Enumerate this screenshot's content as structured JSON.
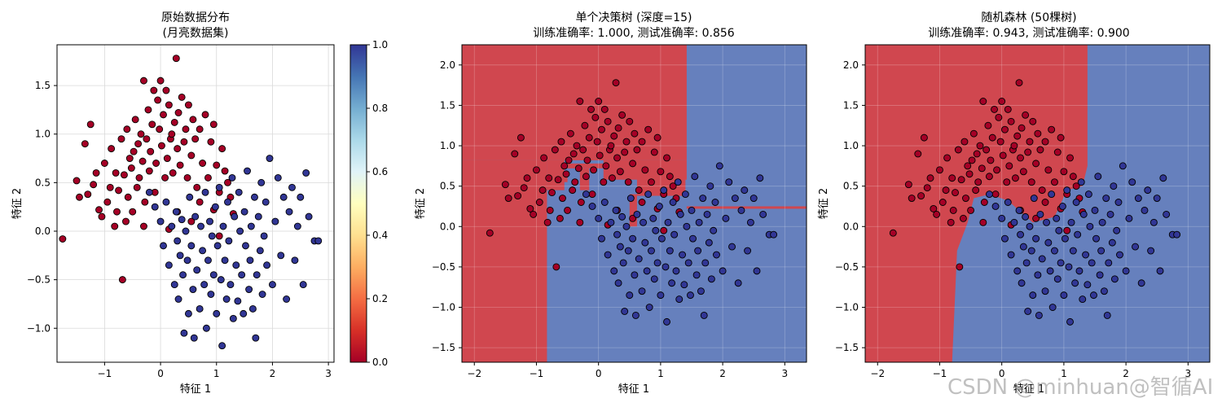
{
  "colors": {
    "red_region": "#d0474f",
    "blue_region": "#6680bd",
    "point_red": "#a50026",
    "point_blue": "#313695",
    "grid": "#d9d9d9"
  },
  "watermark": "CSDN @minhuan@智循AI",
  "chart_data": [
    {
      "type": "scatter",
      "title": "原始数据分布",
      "subtitle": "(月亮数据集)",
      "xlabel": "特征 1",
      "ylabel": "特征 2",
      "xlim": [
        -1.85,
        3.1
      ],
      "ylim": [
        -1.35,
        1.92
      ],
      "xticks": [
        -1,
        0,
        1,
        2,
        3
      ],
      "yticks": [
        -1.0,
        -0.5,
        0.0,
        0.5,
        1.0,
        1.5
      ],
      "grid": true,
      "colorbar": {
        "ticks": [
          "0.0",
          "0.2",
          "0.4",
          "0.6",
          "0.8",
          "1.0"
        ],
        "colormap": "RdYlBu"
      }
    },
    {
      "type": "scatter",
      "title": "单个决策树 (深度=15)",
      "subtitle": "训练准确率: 1.000, 测试准确率: 0.856",
      "xlabel": "特征 1",
      "ylabel": "特征 2",
      "xlim": [
        -2.2,
        3.35
      ],
      "ylim": [
        -1.68,
        2.25
      ],
      "xticks": [
        -2,
        -1,
        0,
        1,
        2,
        3
      ],
      "yticks": [
        -1.5,
        -1.0,
        -0.5,
        0.0,
        0.5,
        1.0,
        1.5,
        2.0
      ],
      "grid": true,
      "decision_regions": [
        {
          "class": 0,
          "x": [
            -2.2,
            1.42
          ],
          "y": [
            0.82,
            2.25
          ]
        },
        {
          "class": 0,
          "x": [
            1.42,
            3.35
          ],
          "y": [
            0.22,
            0.25
          ]
        },
        {
          "class": 0,
          "x": [
            -2.2,
            -0.83
          ],
          "y": [
            -1.68,
            0.82
          ]
        },
        {
          "class": 0,
          "x": [
            -0.83,
            -0.55
          ],
          "y": [
            0.45,
            0.82
          ]
        },
        {
          "class": 0,
          "x": [
            -0.55,
            0.08
          ],
          "y": [
            0.72,
            0.78
          ]
        },
        {
          "class": 0,
          "x": [
            -0.3,
            -0.15
          ],
          "y": [
            0.45,
            0.72
          ]
        },
        {
          "class": 0,
          "x": [
            0.08,
            1.42
          ],
          "y": [
            0.58,
            0.82
          ]
        },
        {
          "class": 0,
          "x": [
            0.5,
            0.62
          ],
          "y": [
            0.0,
            0.4
          ]
        },
        {
          "class": 0,
          "x": [
            0.62,
            1.4
          ],
          "y": [
            0.38,
            0.6
          ]
        },
        {
          "class": 0,
          "x": [
            -0.83,
            -0.5
          ],
          "y": [
            0.55,
            0.62
          ]
        }
      ]
    },
    {
      "type": "scatter",
      "title": "随机森林 (50棵树)",
      "subtitle": "训练准确率: 0.943, 测试准确率: 0.900",
      "xlabel": "特征 1",
      "ylabel": "特征 2",
      "xlim": [
        -2.2,
        3.35
      ],
      "ylim": [
        -1.68,
        2.25
      ],
      "xticks": [
        -2,
        -1,
        0,
        1,
        2,
        3
      ],
      "yticks": [
        -1.5,
        -1.0,
        -0.5,
        0.0,
        0.5,
        1.0,
        1.5,
        2.0
      ],
      "grid": true,
      "decision_boundary": [
        [
          1.38,
          2.25
        ],
        [
          1.38,
          0.75
        ],
        [
          1.3,
          0.5
        ],
        [
          1.05,
          0.45
        ],
        [
          0.85,
          0.12
        ],
        [
          0.5,
          0.05
        ],
        [
          0.1,
          0.32
        ],
        [
          -0.2,
          0.4
        ],
        [
          -0.45,
          0.35
        ],
        [
          -0.55,
          0.05
        ],
        [
          -0.72,
          -0.3
        ],
        [
          -0.8,
          -1.68
        ]
      ]
    }
  ],
  "points": {
    "class0": [
      [
        -1.75,
        -0.08
      ],
      [
        -1.5,
        0.52
      ],
      [
        -1.45,
        0.35
      ],
      [
        -1.35,
        0.9
      ],
      [
        -1.3,
        0.38
      ],
      [
        -1.25,
        1.1
      ],
      [
        -1.2,
        0.48
      ],
      [
        -1.15,
        0.6
      ],
      [
        -1.1,
        0.22
      ],
      [
        -1.05,
        0.15
      ],
      [
        -1.0,
        0.7
      ],
      [
        -0.95,
        0.3
      ],
      [
        -0.9,
        0.45
      ],
      [
        -0.88,
        0.85
      ],
      [
        -0.82,
        0.05
      ],
      [
        -0.8,
        0.6
      ],
      [
        -0.78,
        0.2
      ],
      [
        -0.75,
        0.42
      ],
      [
        -0.7,
        0.95
      ],
      [
        -0.68,
        -0.5
      ],
      [
        -0.65,
        0.58
      ],
      [
        -0.62,
        0.1
      ],
      [
        -0.6,
        1.05
      ],
      [
        -0.58,
        0.35
      ],
      [
        -0.55,
        0.75
      ],
      [
        -0.52,
        0.65
      ],
      [
        -0.5,
        0.2
      ],
      [
        -0.48,
        0.82
      ],
      [
        -0.45,
        1.15
      ],
      [
        -0.42,
        0.45
      ],
      [
        -0.4,
        0.9
      ],
      [
        -0.38,
        0.55
      ],
      [
        -0.35,
        1.0
      ],
      [
        -0.32,
        0.72
      ],
      [
        -0.3,
        1.55
      ],
      [
        -0.28,
        0.3
      ],
      [
        -0.25,
        0.95
      ],
      [
        -0.22,
        1.25
      ],
      [
        -0.2,
        0.62
      ],
      [
        -0.18,
        0.82
      ],
      [
        -0.15,
        1.1
      ],
      [
        -0.12,
        1.45
      ],
      [
        -0.1,
        0.4
      ],
      [
        -0.08,
        0.7
      ],
      [
        -0.05,
        1.35
      ],
      [
        -0.02,
        1.05
      ],
      [
        0.0,
        1.55
      ],
      [
        0.02,
        0.88
      ],
      [
        0.05,
        1.2
      ],
      [
        0.08,
        0.55
      ],
      [
        0.1,
        1.45
      ],
      [
        0.12,
        0.75
      ],
      [
        0.15,
        1.3
      ],
      [
        0.18,
        0.95
      ],
      [
        0.2,
        1.0
      ],
      [
        0.22,
        0.6
      ],
      [
        0.25,
        1.12
      ],
      [
        0.28,
        1.78
      ],
      [
        0.3,
        0.85
      ],
      [
        0.32,
        1.22
      ],
      [
        0.35,
        0.68
      ],
      [
        0.38,
        1.38
      ],
      [
        0.42,
        0.92
      ],
      [
        0.45,
        1.05
      ],
      [
        0.48,
        0.55
      ],
      [
        0.5,
        1.3
      ],
      [
        0.55,
        0.78
      ],
      [
        0.58,
        1.15
      ],
      [
        0.62,
        0.95
      ],
      [
        0.65,
        0.45
      ],
      [
        0.7,
        1.05
      ],
      [
        0.75,
        0.7
      ],
      [
        0.8,
        1.2
      ],
      [
        0.85,
        0.55
      ],
      [
        0.9,
        0.92
      ],
      [
        0.95,
        1.1
      ],
      [
        1.0,
        0.68
      ],
      [
        1.05,
        0.4
      ],
      [
        1.1,
        0.85
      ],
      [
        1.15,
        0.62
      ],
      [
        1.2,
        0.5
      ],
      [
        1.25,
        0.35
      ],
      [
        0.3,
        0.2
      ],
      [
        0.55,
        0.1
      ],
      [
        0.7,
        0.3
      ],
      [
        -0.3,
        0.05
      ],
      [
        0.15,
        0.02
      ],
      [
        1.3,
        0.18
      ],
      [
        1.05,
        -0.05
      ],
      [
        0.95,
        0.22
      ]
    ],
    "class1": [
      [
        -0.2,
        0.4
      ],
      [
        -0.1,
        0.25
      ],
      [
        0.0,
        0.1
      ],
      [
        0.05,
        -0.15
      ],
      [
        0.1,
        0.3
      ],
      [
        0.15,
        -0.35
      ],
      [
        0.2,
        0.05
      ],
      [
        0.25,
        -0.55
      ],
      [
        0.28,
        0.2
      ],
      [
        0.3,
        -0.1
      ],
      [
        0.32,
        -0.7
      ],
      [
        0.35,
        -0.25
      ],
      [
        0.38,
        0.12
      ],
      [
        0.4,
        -0.45
      ],
      [
        0.42,
        -1.05
      ],
      [
        0.45,
        0.0
      ],
      [
        0.48,
        -0.3
      ],
      [
        0.5,
        -0.85
      ],
      [
        0.52,
        0.35
      ],
      [
        0.55,
        -0.15
      ],
      [
        0.58,
        -0.6
      ],
      [
        0.6,
        -1.1
      ],
      [
        0.62,
        0.15
      ],
      [
        0.65,
        -0.4
      ],
      [
        0.7,
        -0.8
      ],
      [
        0.72,
        0.05
      ],
      [
        0.75,
        -0.2
      ],
      [
        0.78,
        -0.55
      ],
      [
        0.8,
        0.4
      ],
      [
        0.82,
        -1.0
      ],
      [
        0.85,
        -0.3
      ],
      [
        0.88,
        0.1
      ],
      [
        0.9,
        -0.65
      ],
      [
        0.92,
        -0.05
      ],
      [
        0.95,
        -0.45
      ],
      [
        0.98,
        0.25
      ],
      [
        1.0,
        -0.85
      ],
      [
        1.02,
        -0.15
      ],
      [
        1.05,
        0.45
      ],
      [
        1.08,
        -0.5
      ],
      [
        1.1,
        -1.18
      ],
      [
        1.12,
        0.05
      ],
      [
        1.15,
        -0.3
      ],
      [
        1.18,
        -0.7
      ],
      [
        1.2,
        0.3
      ],
      [
        1.22,
        -0.1
      ],
      [
        1.25,
        -0.55
      ],
      [
        1.28,
        0.55
      ],
      [
        1.3,
        -0.9
      ],
      [
        1.32,
        0.15
      ],
      [
        1.35,
        -0.35
      ],
      [
        1.38,
        -0.72
      ],
      [
        1.4,
        0.4
      ],
      [
        1.42,
        0.0
      ],
      [
        1.45,
        -0.45
      ],
      [
        1.48,
        -0.85
      ],
      [
        1.5,
        0.2
      ],
      [
        1.52,
        -0.15
      ],
      [
        1.55,
        0.62
      ],
      [
        1.58,
        -0.6
      ],
      [
        1.6,
        -0.3
      ],
      [
        1.62,
        0.05
      ],
      [
        1.65,
        -0.8
      ],
      [
        1.68,
        0.35
      ],
      [
        1.7,
        -1.1
      ],
      [
        1.72,
        -0.45
      ],
      [
        1.75,
        0.15
      ],
      [
        1.78,
        -0.2
      ],
      [
        1.8,
        0.5
      ],
      [
        1.82,
        -0.65
      ],
      [
        1.85,
        -0.05
      ],
      [
        1.88,
        0.3
      ],
      [
        1.9,
        -0.35
      ],
      [
        1.95,
        0.75
      ],
      [
        2.0,
        -0.55
      ],
      [
        2.05,
        0.1
      ],
      [
        2.1,
        0.55
      ],
      [
        2.15,
        -0.25
      ],
      [
        2.2,
        0.35
      ],
      [
        2.25,
        -0.7
      ],
      [
        2.3,
        0.2
      ],
      [
        2.35,
        0.45
      ],
      [
        2.4,
        -0.3
      ],
      [
        2.45,
        0.05
      ],
      [
        2.5,
        0.35
      ],
      [
        2.6,
        0.6
      ],
      [
        2.65,
        0.15
      ],
      [
        2.75,
        -0.1
      ],
      [
        2.82,
        -0.1
      ],
      [
        2.55,
        -0.55
      ]
    ]
  }
}
